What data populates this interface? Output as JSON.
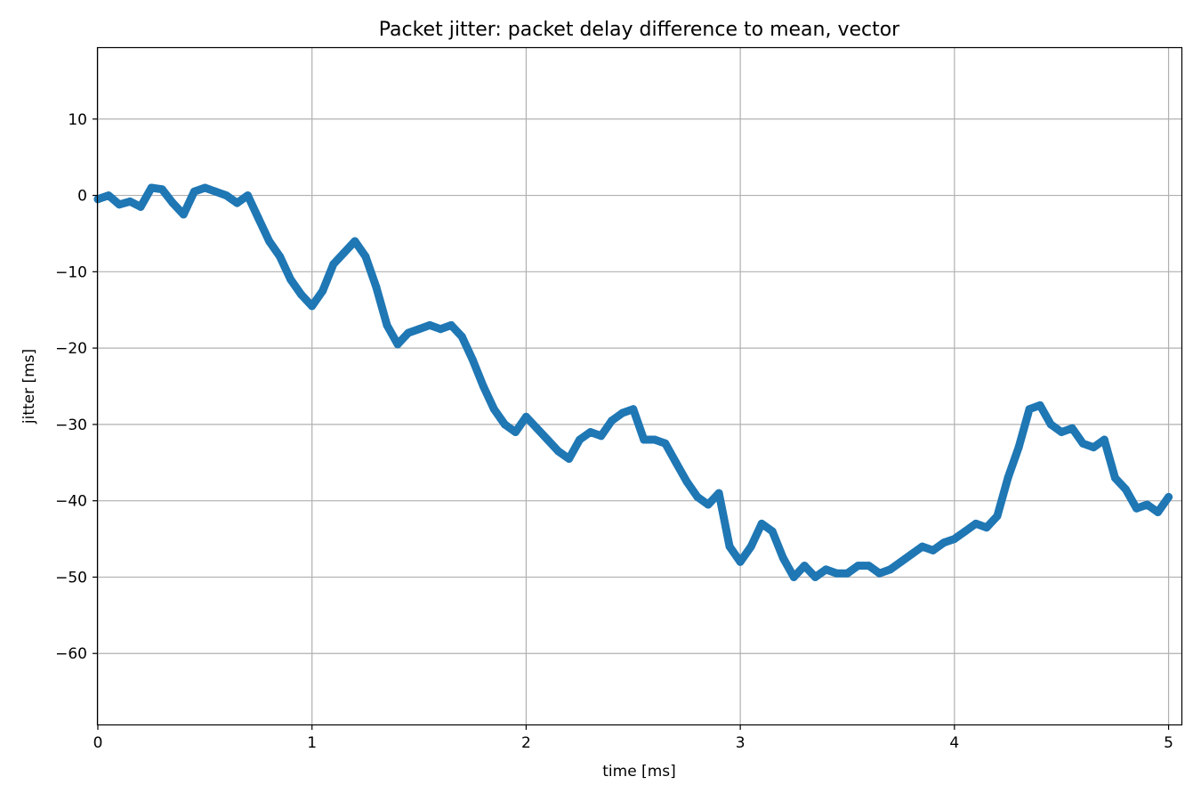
{
  "chart_data": {
    "type": "line",
    "title": "Packet jitter: packet delay difference to mean, vector",
    "xlabel": "time [ms]",
    "ylabel": "jitter [ms]",
    "xlim": [
      0,
      5.06
    ],
    "ylim": [
      -69.3,
      19.3
    ],
    "xticks": [
      0,
      1,
      2,
      3,
      4,
      5
    ],
    "yticks": [
      10,
      0,
      -10,
      -20,
      -30,
      -40,
      -50,
      -60
    ],
    "grid": true,
    "legend": "none",
    "series": [
      {
        "color": "#1f77b4",
        "x": [
          0,
          0.05,
          0.1,
          0.15,
          0.2,
          0.25,
          0.3,
          0.35,
          0.4,
          0.45,
          0.5,
          0.55,
          0.6,
          0.65,
          0.7,
          0.75,
          0.8,
          0.85,
          0.9,
          0.95,
          1.0,
          1.05,
          1.1,
          1.15,
          1.2,
          1.25,
          1.3,
          1.35,
          1.4,
          1.45,
          1.5,
          1.55,
          1.6,
          1.65,
          1.7,
          1.75,
          1.8,
          1.85,
          1.9,
          1.95,
          2.0,
          2.05,
          2.1,
          2.15,
          2.2,
          2.25,
          2.3,
          2.35,
          2.4,
          2.45,
          2.5,
          2.55,
          2.6,
          2.65,
          2.7,
          2.75,
          2.8,
          2.85,
          2.9,
          2.95,
          3.0,
          3.05,
          3.1,
          3.15,
          3.2,
          3.25,
          3.3,
          3.35,
          3.4,
          3.45,
          3.5,
          3.55,
          3.6,
          3.65,
          3.7,
          3.75,
          3.8,
          3.85,
          3.9,
          3.95,
          4.0,
          4.05,
          4.1,
          4.15,
          4.2,
          4.25,
          4.3,
          4.35,
          4.4,
          4.45,
          4.5,
          4.55,
          4.6,
          4.65,
          4.7,
          4.75,
          4.8,
          4.85,
          4.9,
          4.95,
          5.0
        ],
        "y": [
          -0.5,
          0.0,
          -1.2,
          -0.8,
          -1.5,
          1.0,
          0.8,
          -1.0,
          -2.5,
          0.5,
          1.0,
          0.5,
          0.0,
          -1.0,
          0.0,
          -3.0,
          -6.0,
          -8.0,
          -11.0,
          -13.0,
          -14.5,
          -12.5,
          -9.0,
          -7.5,
          -6.0,
          -8.0,
          -12.0,
          -17.0,
          -19.5,
          -18.0,
          -17.5,
          -17.0,
          -17.5,
          -17.0,
          -18.5,
          -21.5,
          -25.0,
          -28.0,
          -30.0,
          -31.0,
          -29.0,
          -30.5,
          -32.0,
          -33.5,
          -34.5,
          -32.0,
          -31.0,
          -31.5,
          -29.5,
          -28.5,
          -28.0,
          -32.0,
          -32.0,
          -32.5,
          -35.0,
          -37.5,
          -39.5,
          -40.5,
          -39.0,
          -46.0,
          -48.0,
          -46.0,
          -43.0,
          -44.0,
          -47.5,
          -50.0,
          -48.5,
          -50.0,
          -49.0,
          -49.5,
          -49.5,
          -48.5,
          -48.5,
          -49.5,
          -49.0,
          -48.0,
          -47.0,
          -46.0,
          -46.5,
          -45.5,
          -45.0,
          -44.0,
          -43.0,
          -43.5,
          -42.0,
          -37.0,
          -33.0,
          -28.0,
          -27.5,
          -30.0,
          -31.0,
          -30.5,
          -32.5,
          -33.0,
          -32.0,
          -37.0,
          -38.5,
          -41.0,
          -40.5,
          -41.5,
          -39.5
        ]
      }
    ]
  }
}
